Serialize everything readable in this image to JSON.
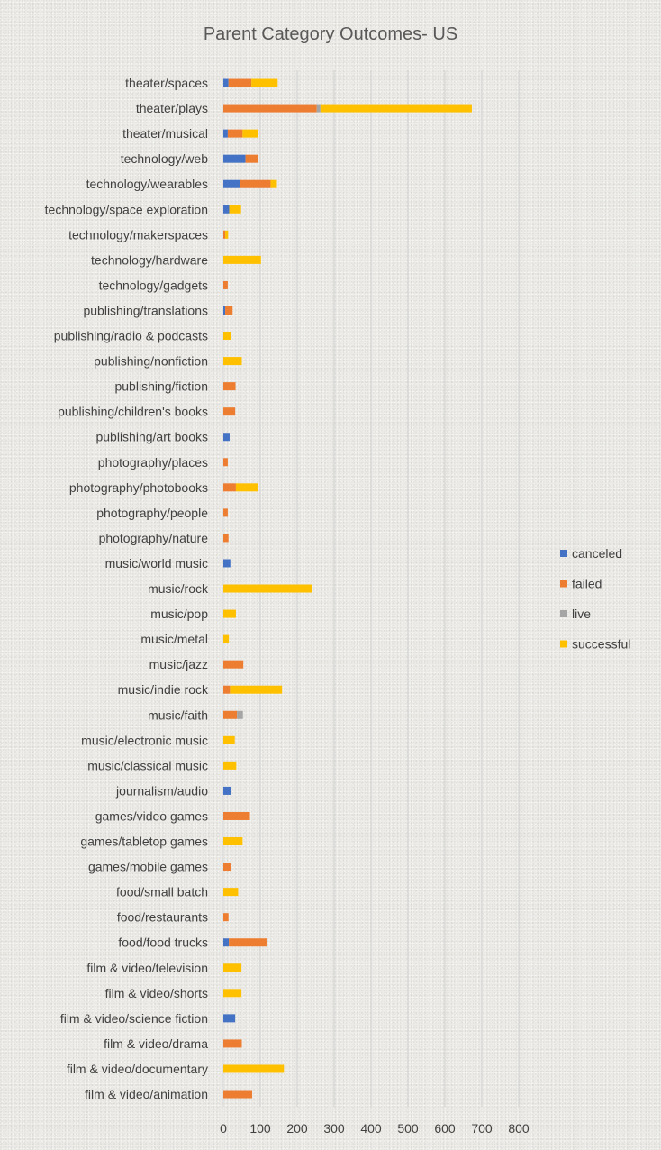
{
  "chart_data": {
    "type": "bar",
    "orientation": "horizontal",
    "stacked": true,
    "title": "Parent Category Outcomes- US",
    "xlabel": "",
    "ylabel": "",
    "xlim": [
      0,
      800
    ],
    "xticks": [
      0,
      100,
      200,
      300,
      400,
      500,
      600,
      700,
      800
    ],
    "grid": true,
    "legend_position": "right",
    "categories": [
      "theater/spaces",
      "theater/plays",
      "theater/musical",
      "technology/web",
      "technology/wearables",
      "technology/space exploration",
      "technology/makerspaces",
      "technology/hardware",
      "technology/gadgets",
      "publishing/translations",
      "publishing/radio & podcasts",
      "publishing/nonfiction",
      "publishing/fiction",
      "publishing/children's books",
      "publishing/art books",
      "photography/places",
      "photography/photobooks",
      "photography/people",
      "photography/nature",
      "music/world music",
      "music/rock",
      "music/pop",
      "music/metal",
      "music/jazz",
      "music/indie rock",
      "music/faith",
      "music/electronic music",
      "music/classical music",
      "journalism/audio",
      "games/video games",
      "games/tabletop games",
      "games/mobile games",
      "food/small batch",
      "food/restaurants",
      "food/food trucks",
      "film & video/television",
      "film & video/shorts",
      "film & video/science fiction",
      "film & video/drama",
      "film & video/documentary",
      "film & video/animation"
    ],
    "series": [
      {
        "name": "canceled",
        "color": "#4472C4",
        "values": [
          14,
          0,
          12,
          60,
          44,
          16,
          0,
          0,
          0,
          5,
          0,
          0,
          0,
          0,
          17,
          0,
          0,
          0,
          0,
          19,
          0,
          0,
          0,
          0,
          0,
          0,
          0,
          0,
          22,
          0,
          0,
          0,
          0,
          0,
          15,
          0,
          0,
          32,
          0,
          0,
          0
        ]
      },
      {
        "name": "failed",
        "color": "#ED7D31",
        "values": [
          62,
          253,
          40,
          35,
          84,
          0,
          5,
          0,
          12,
          20,
          0,
          0,
          33,
          32,
          0,
          12,
          34,
          12,
          14,
          0,
          0,
          0,
          0,
          54,
          18,
          37,
          0,
          0,
          0,
          72,
          0,
          21,
          0,
          14,
          102,
          0,
          0,
          0,
          50,
          0,
          78
        ]
      },
      {
        "name": "live",
        "color": "#A5A5A5",
        "values": [
          0,
          10,
          0,
          0,
          0,
          0,
          0,
          0,
          0,
          0,
          0,
          0,
          0,
          0,
          0,
          0,
          0,
          0,
          0,
          0,
          0,
          0,
          0,
          0,
          0,
          16,
          0,
          0,
          0,
          0,
          0,
          0,
          0,
          0,
          0,
          0,
          0,
          0,
          0,
          0,
          0
        ]
      },
      {
        "name": "successful",
        "color": "#FFC000",
        "values": [
          71,
          410,
          42,
          0,
          17,
          32,
          8,
          102,
          0,
          0,
          21,
          50,
          0,
          0,
          0,
          0,
          61,
          0,
          0,
          0,
          241,
          34,
          15,
          0,
          141,
          0,
          31,
          35,
          0,
          0,
          52,
          0,
          40,
          0,
          0,
          49,
          49,
          0,
          0,
          164,
          0
        ]
      }
    ]
  }
}
